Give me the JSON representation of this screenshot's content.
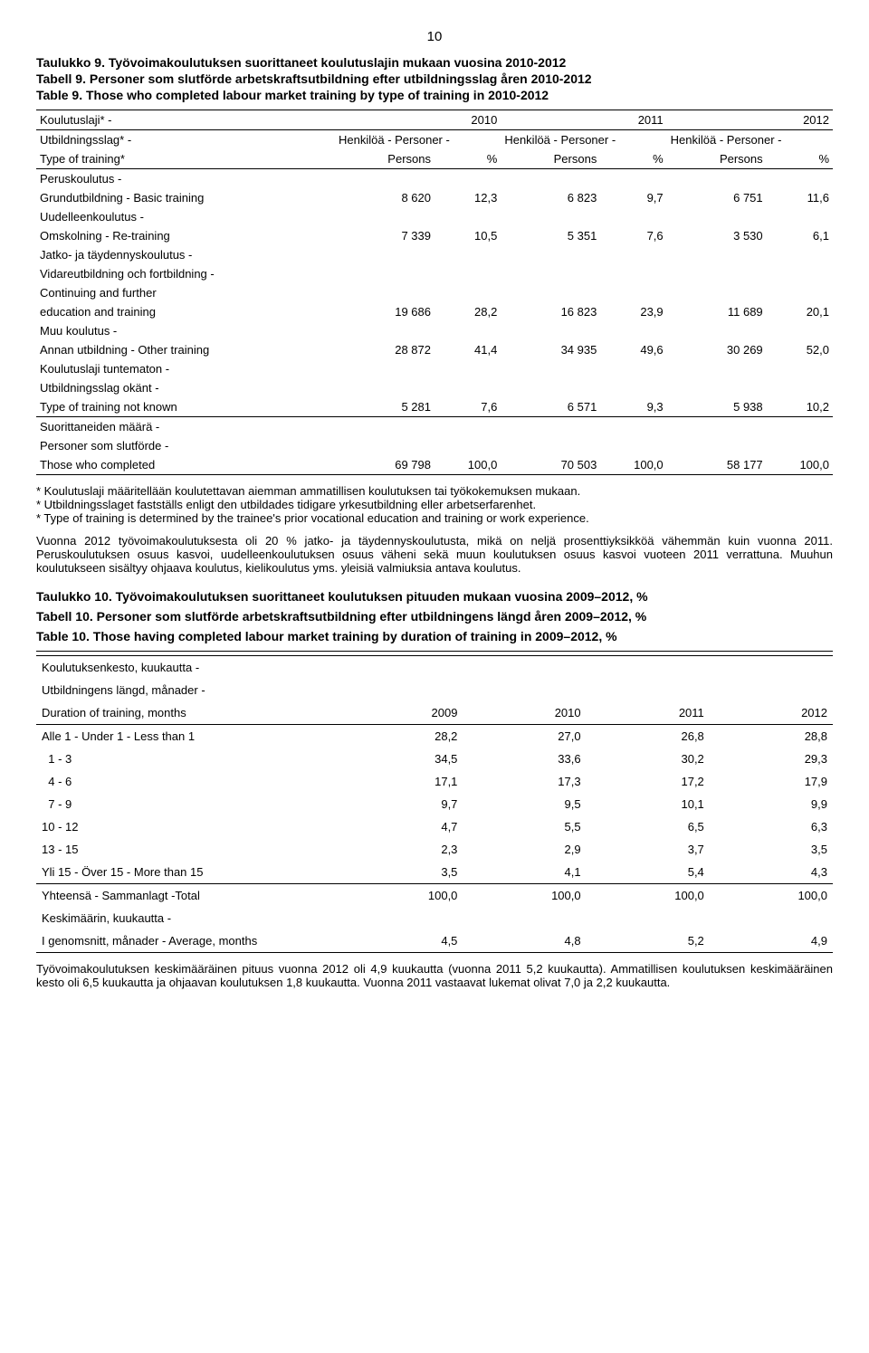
{
  "page_number": "10",
  "t9": {
    "title_fi": "Taulukko 9. Työvoimakoulutuksen suorittaneet koulutuslajin mukaan vuosina 2010-2012",
    "title_sv": "Tabell 9. Personer som slutförde arbetskraftsutbildning efter utbildningsslag åren 2010-2012",
    "title_en": "Table 9. Those who completed labour market training by type of training in 2010-2012",
    "col_group_label": "Koulutuslaji* -",
    "col_group_sv": "Utbildningsslag* -",
    "col_group_row3": "Type of training*",
    "year_2010": "2010",
    "year_2011": "2011",
    "year_2012": "2012",
    "hp": "Henkilöä - Personer -",
    "persons": "Persons",
    "pct": "%",
    "rows": [
      {
        "l1": "Peruskoulutus -",
        "l2": "Grundutbildning - Basic training",
        "v": [
          "8 620",
          "12,3",
          "6 823",
          "9,7",
          "6 751",
          "11,6"
        ]
      },
      {
        "l1": "Uudelleenkoulutus -",
        "l2": "Omskolning - Re-training",
        "v": [
          "7 339",
          "10,5",
          "5 351",
          "7,6",
          "3 530",
          "6,1"
        ]
      },
      {
        "l1": "Jatko- ja täydennyskoulutus -",
        "l2": "Vidareutbildning och fortbildning -",
        "l3": "Continuing and further",
        "l4": "education and  training",
        "v": [
          "19 686",
          "28,2",
          "16 823",
          "23,9",
          "11 689",
          "20,1"
        ]
      },
      {
        "l1": "Muu koulutus -",
        "l2": "Annan utbildning - Other training",
        "v": [
          "28 872",
          "41,4",
          "34 935",
          "49,6",
          "30 269",
          "52,0"
        ]
      },
      {
        "l1": "Koulutuslaji tuntematon -",
        "l2": "Utbildningsslag okänt -",
        "l3": "Type of training not known",
        "v": [
          "5 281",
          "7,6",
          "6 571",
          "9,3",
          "5 938",
          "10,2"
        ]
      }
    ],
    "total": {
      "l1": "Suorittaneiden määrä -",
      "l2": "Personer som slutförde -",
      "l3": "Those who completed",
      "v": [
        "69 798",
        "100,0",
        "70 503",
        "100,0",
        "58 177",
        "100,0"
      ]
    },
    "fn1": "* Koulutuslaji määritellään koulutettavan aiemman ammatillisen koulutuksen tai työkokemuksen mukaan.",
    "fn2": "* Utbildningsslaget fastställs enligt den utbildades tidigare yrkesutbildning eller arbetserfarenhet.",
    "fn3": "* Type of training is determined by the trainee's prior vocational education and training or work experience.",
    "para": "Vuonna 2012 työvoimakoulutuksesta oli 20 % jatko- ja täydennyskoulutusta, mikä on neljä prosenttiyksikköä vähemmän kuin vuonna 2011. Peruskoulutuksen osuus kasvoi, uudelleenkoulutuksen osuus väheni sekä muun koulutuksen osuus kasvoi vuoteen 2011 verrattuna. Muuhun koulutukseen sisältyy ohjaava koulutus, kielikoulutus yms. yleisiä valmiuksia antava koulutus."
  },
  "t10": {
    "title_fi": "Taulukko 10. Työvoimakoulutuksen suorittaneet koulutuksen pituuden mukaan vuosina 2009–2012, %",
    "title_sv": "Tabell 10. Personer som slutförde arbetskraftsutbildning efter utbildningens längd åren 2009–2012, %",
    "title_en": "Table 10. Those having completed labour market training by duration of training in 2009–2012, %",
    "hdr_l1": "Koulutuksenkesto, kuukautta -",
    "hdr_l2": "Utbildningens längd, månader -",
    "hdr_l3": "Duration of training, months",
    "years": [
      "2009",
      "2010",
      "2011",
      "2012"
    ],
    "rows": [
      {
        "label": "Alle 1 - Under 1 - Less than 1",
        "v": [
          "28,2",
          "27,0",
          "26,8",
          "28,8"
        ]
      },
      {
        "label": "  1 - 3",
        "v": [
          "34,5",
          "33,6",
          "30,2",
          "29,3"
        ]
      },
      {
        "label": "  4 - 6",
        "v": [
          "17,1",
          "17,3",
          "17,2",
          "17,9"
        ]
      },
      {
        "label": "  7 - 9",
        "v": [
          "9,7",
          "9,5",
          "10,1",
          "9,9"
        ]
      },
      {
        "label": "10 - 12",
        "v": [
          "4,7",
          "5,5",
          "6,5",
          "6,3"
        ]
      },
      {
        "label": "13 - 15",
        "v": [
          "2,3",
          "2,9",
          "3,7",
          "3,5"
        ]
      },
      {
        "label": "Yli 15 - Över 15 - More than 15",
        "v": [
          "3,5",
          "4,1",
          "5,4",
          "4,3"
        ]
      }
    ],
    "total": {
      "label": "Yhteensä - Sammanlagt -Total",
      "v": [
        "100,0",
        "100,0",
        "100,0",
        "100,0"
      ]
    },
    "avg": {
      "l1": "Keskimäärin, kuukautta -",
      "l2": "I genomsnitt, månader - Average, months",
      "v": [
        "4,5",
        "4,8",
        "5,2",
        "4,9"
      ]
    },
    "para": "Työvoimakoulutuksen keskimääräinen pituus vuonna 2012 oli 4,9 kuukautta (vuonna 2011 5,2 kuukautta). Ammatillisen koulutuksen keskimääräinen kesto oli 6,5 kuukautta ja ohjaavan koulutuksen 1,8 kuukautta. Vuonna 2011 vastaavat lukemat olivat 7,0 ja 2,2 kuukautta."
  }
}
